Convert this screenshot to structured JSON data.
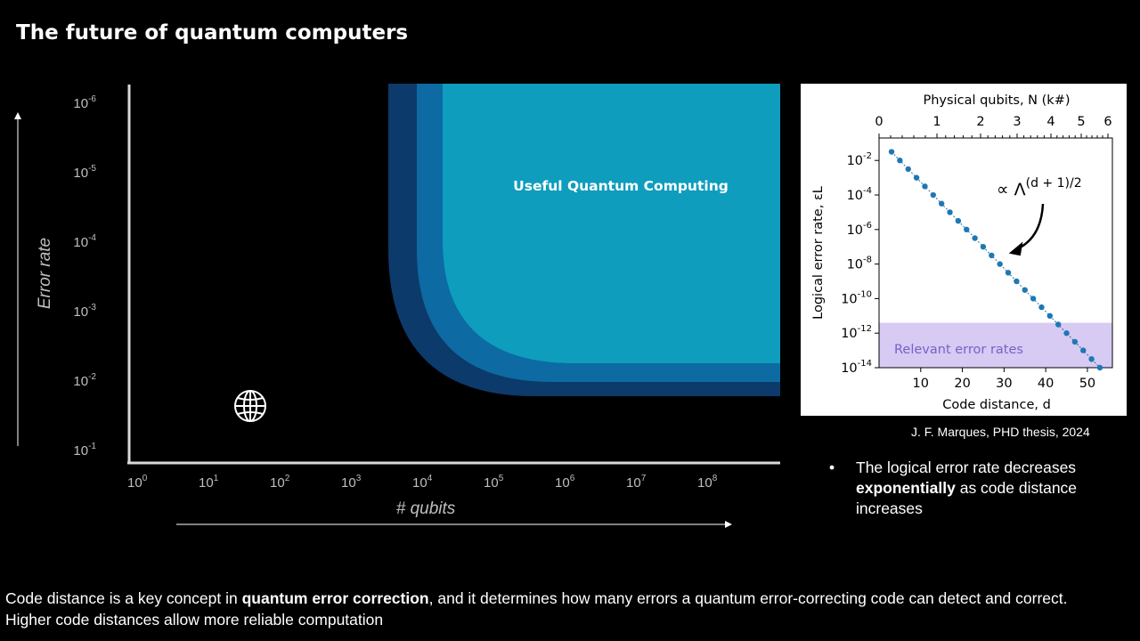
{
  "title": "The future of quantum computers",
  "main_chart": {
    "ylabel": "Error rate",
    "xlabel": "# qubits",
    "y_ticks": [
      {
        "base": "10",
        "exp": "-6"
      },
      {
        "base": "10",
        "exp": "-5"
      },
      {
        "base": "10",
        "exp": "-4"
      },
      {
        "base": "10",
        "exp": "-3"
      },
      {
        "base": "10",
        "exp": "-2"
      },
      {
        "base": "10",
        "exp": "-1"
      }
    ],
    "x_ticks": [
      {
        "base": "10",
        "exp": "0"
      },
      {
        "base": "10",
        "exp": "1"
      },
      {
        "base": "10",
        "exp": "2"
      },
      {
        "base": "10",
        "exp": "3"
      },
      {
        "base": "10",
        "exp": "4"
      },
      {
        "base": "10",
        "exp": "5"
      },
      {
        "base": "10",
        "exp": "6"
      },
      {
        "base": "10",
        "exp": "7"
      },
      {
        "base": "10",
        "exp": "8"
      }
    ],
    "region_label": "Useful Quantum Computing",
    "icon": "globe-icon",
    "colors": {
      "outer": "#0c3a6b",
      "middle": "#0d6aa3",
      "inner": "#0f9dbd"
    }
  },
  "chart_data": [
    {
      "type": "scatter",
      "title": "",
      "xlabel": "Code distance, d",
      "ylabel": "Logical error rate, εL",
      "top_xlabel": "Physical qubits, N (k#)",
      "yscale": "log",
      "x_ticks": [
        "10",
        "20",
        "30",
        "40",
        "50"
      ],
      "top_x_ticks": [
        "0",
        "1",
        "2",
        "3",
        "4",
        "5",
        "6"
      ],
      "y_ticks": [
        "10-2",
        "10-4",
        "10-6",
        "10-8",
        "10-10",
        "10-12",
        "10-14"
      ],
      "xlim": [
        0,
        56
      ],
      "ylim_log10": [
        -14,
        -0.7
      ],
      "x": [
        3,
        5,
        7,
        9,
        11,
        13,
        15,
        17,
        19,
        21,
        23,
        25,
        27,
        29,
        31,
        33,
        35,
        37,
        39,
        41,
        43,
        45,
        47,
        49,
        51,
        53
      ],
      "log10_y": [
        -1.5,
        -2.0,
        -2.5,
        -3.0,
        -3.5,
        -4.0,
        -4.5,
        -5.0,
        -5.5,
        -6.0,
        -6.5,
        -7.0,
        -7.5,
        -8.0,
        -8.5,
        -9.0,
        -9.5,
        -10.0,
        -10.5,
        -11.0,
        -11.5,
        -12.0,
        -12.5,
        -13.0,
        -13.5,
        -14.0
      ],
      "annotation": "∝ Λ",
      "annotation_exp": "(d + 1)/2",
      "band_label": "Relevant error rates",
      "band_log10_range": [
        -14,
        -11.4
      ],
      "colors": {
        "points": "#1f77b4",
        "band": "#c9b8ef",
        "band_text": "#7b5fc9"
      }
    }
  ],
  "citation": "J. F. Marques, PHD thesis, 2024",
  "bullet": {
    "marker": "•",
    "text_before": "The logical error rate decreases ",
    "emphasis": "exponentially",
    "text_after": " as code distance increases"
  },
  "footer": {
    "line1_before": "Code distance is a key concept in ",
    "line1_emphasis": "quantum error correction",
    "line1_after": ", and it determines how many errors a quantum error-correcting code can detect and correct.",
    "line2": "Higher code distances allow more reliable computation"
  }
}
